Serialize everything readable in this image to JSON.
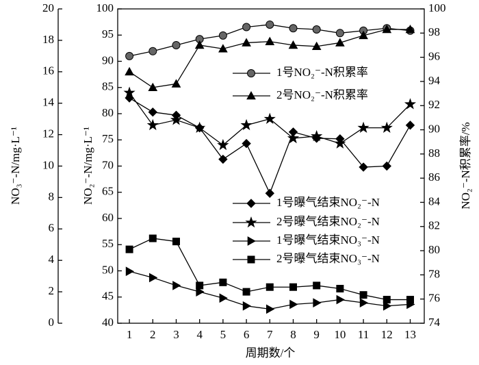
{
  "chart_data": {
    "type": "line",
    "xlabel": "周期数/个",
    "ylabel": "NO₂⁻-N/mg·L⁻¹",
    "y2label": "NO₂⁻-N积累率/%",
    "y3label": "NO₃⁻-N/mg·L⁻¹",
    "x": [
      1,
      2,
      3,
      4,
      5,
      6,
      7,
      8,
      9,
      10,
      11,
      12,
      13
    ],
    "xlim": [
      0.5,
      13.6
    ],
    "xticks": [
      1,
      2,
      3,
      4,
      5,
      6,
      7,
      8,
      9,
      10,
      11,
      12,
      13
    ],
    "ylim": [
      40,
      100
    ],
    "yticks": [
      40,
      45,
      50,
      55,
      60,
      65,
      70,
      75,
      80,
      85,
      90,
      95,
      100
    ],
    "y2lim": [
      74,
      100
    ],
    "y2ticks": [
      74,
      76,
      78,
      80,
      82,
      84,
      86,
      88,
      90,
      92,
      94,
      96,
      98,
      100
    ],
    "y3lim": [
      0,
      20
    ],
    "y3ticks": [
      0,
      2,
      4,
      6,
      8,
      10,
      12,
      14,
      16,
      18,
      20
    ],
    "series": [
      {
        "name": "1号NO₂⁻-N积累率",
        "color": "#000000",
        "marker": "circle",
        "axis": "y2",
        "values": [
          96.1,
          96.5,
          97.0,
          97.5,
          97.8,
          98.5,
          98.7,
          98.4,
          98.3,
          98.0,
          98.2,
          98.4,
          98.2
        ]
      },
      {
        "name": "2号NO₂⁻-N积累率",
        "color": "#000000",
        "marker": "triangle",
        "axis": "y2",
        "values": [
          94.8,
          93.5,
          93.8,
          97.0,
          96.7,
          97.2,
          97.3,
          97.0,
          96.9,
          97.2,
          97.8,
          98.3,
          98.3
        ]
      },
      {
        "name": "1号曝气结束NO₂⁻-N",
        "color": "#000000",
        "marker": "diamond",
        "axis": "y",
        "values": [
          83.0,
          80.3,
          79.7,
          77.3,
          71.3,
          74.3,
          64.8,
          76.5,
          75.3,
          75.2,
          69.8,
          70.0,
          77.8
        ]
      },
      {
        "name": "2号曝气结束NO₂⁻-N",
        "color": "#000000",
        "marker": "star",
        "axis": "y",
        "values": [
          84.0,
          77.8,
          78.8,
          77.3,
          74.0,
          77.8,
          79.0,
          75.3,
          75.7,
          74.3,
          77.3,
          77.3,
          81.8
        ]
      },
      {
        "name": "1号曝气结束NO₃⁻-N",
        "color": "#000000",
        "marker": "triangle-right",
        "axis": "y3",
        "values": [
          3.3,
          2.9,
          2.4,
          2.0,
          1.6,
          1.1,
          0.9,
          1.2,
          1.3,
          1.5,
          1.3,
          1.1,
          1.2
        ]
      },
      {
        "name": "2号曝气结束NO₃⁻-N",
        "color": "#000000",
        "marker": "square",
        "axis": "y3",
        "values": [
          4.7,
          5.4,
          5.2,
          2.4,
          2.6,
          2.0,
          2.3,
          2.3,
          2.4,
          2.2,
          1.8,
          1.5,
          1.5
        ]
      }
    ]
  }
}
